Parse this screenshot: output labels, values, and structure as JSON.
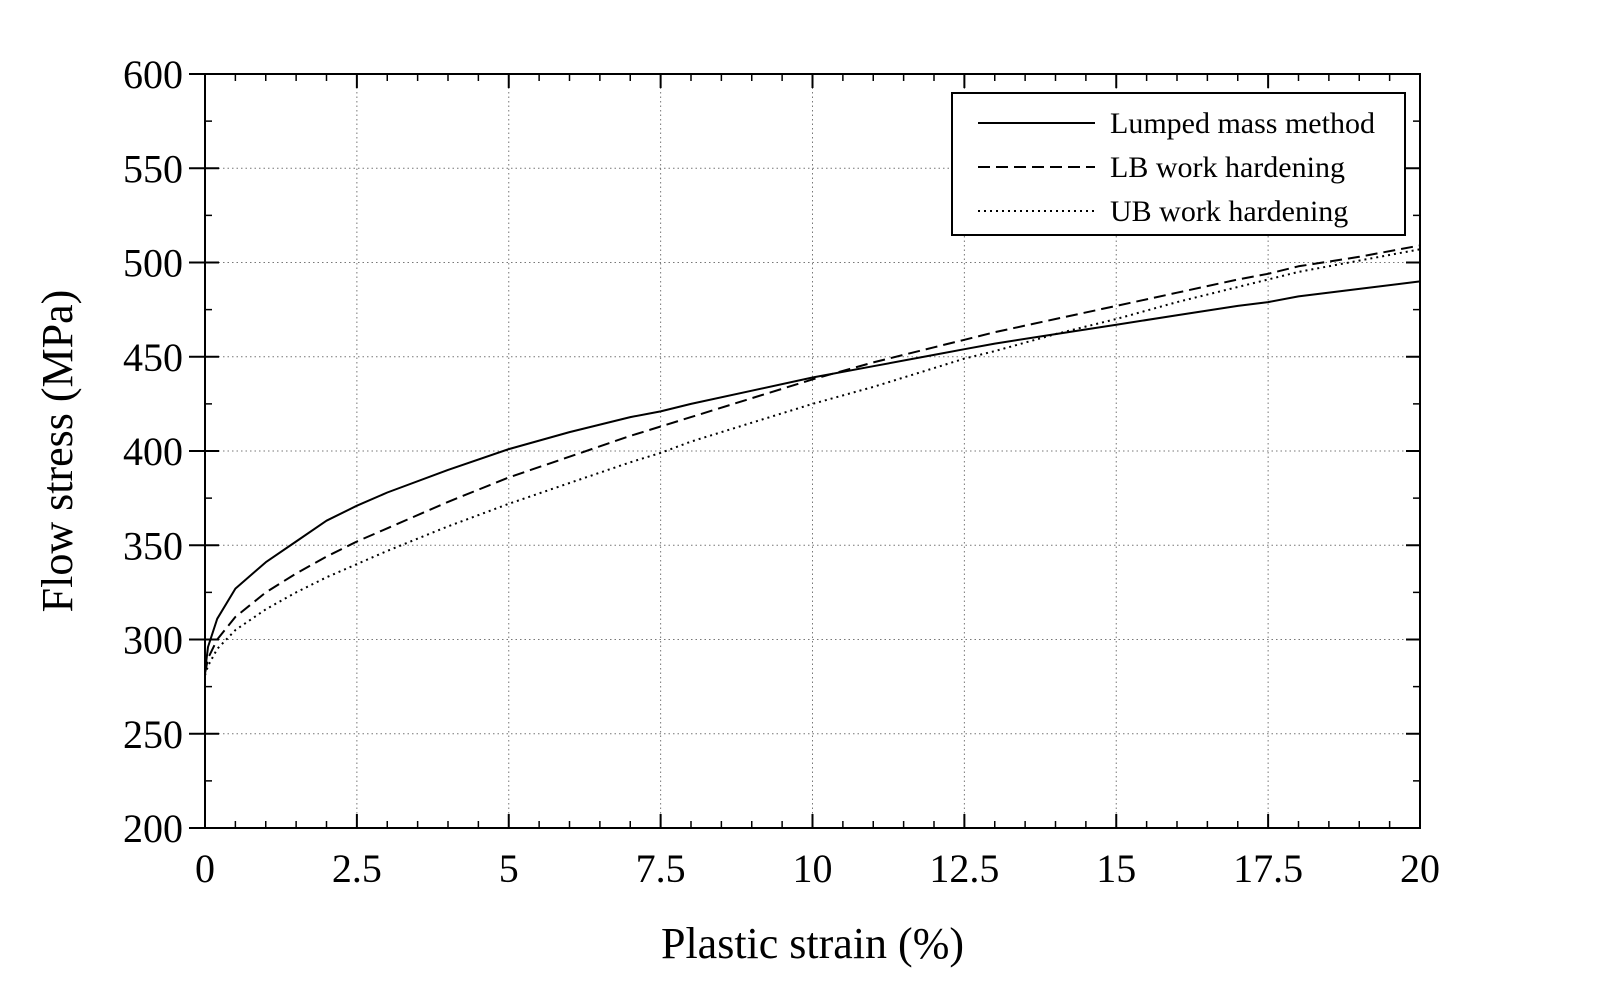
{
  "chart_data": {
    "type": "line",
    "title": "",
    "xlabel": "Plastic strain (%)",
    "ylabel": "Flow stress (MPa)",
    "xlim": [
      0,
      20
    ],
    "ylim": [
      200,
      600
    ],
    "x_ticks": [
      0,
      2.5,
      5,
      7.5,
      10,
      12.5,
      15,
      17.5,
      20
    ],
    "x_tick_labels": [
      "0",
      "2.5",
      "5",
      "7.5",
      "10",
      "12.5",
      "15",
      "17.5",
      "20"
    ],
    "y_ticks": [
      200,
      250,
      300,
      350,
      400,
      450,
      500,
      550,
      600
    ],
    "y_tick_labels": [
      "200",
      "250",
      "300",
      "350",
      "400",
      "450",
      "500",
      "550",
      "600"
    ],
    "grid": true,
    "legend_position": "top-right",
    "series": [
      {
        "name": "Lumped mass method",
        "line_style": "solid",
        "color": "#000000",
        "x": [
          0,
          0.05,
          0.2,
          0.5,
          1,
          1.5,
          2,
          2.5,
          3,
          4,
          5,
          6,
          7,
          7.5,
          8,
          9,
          10,
          11,
          12,
          12.5,
          13,
          14,
          15,
          16,
          17,
          17.5,
          18,
          19,
          20
        ],
        "y": [
          283,
          296,
          311,
          327,
          341,
          352,
          363,
          371,
          378,
          390,
          401,
          410,
          418,
          421,
          425,
          432,
          439,
          445,
          451,
          454,
          457,
          462,
          467,
          472,
          477,
          479,
          482,
          486,
          490
        ]
      },
      {
        "name": "LB work hardening",
        "line_style": "dashed",
        "color": "#000000",
        "x": [
          0,
          0.05,
          0.2,
          0.5,
          1,
          1.5,
          2,
          2.5,
          3,
          4,
          5,
          6,
          7,
          7.5,
          8,
          9,
          10,
          11,
          12,
          12.5,
          13,
          14,
          15,
          16,
          17,
          17.5,
          18,
          19,
          20
        ],
        "y": [
          282,
          290,
          300,
          312,
          325,
          335,
          344,
          352,
          359,
          373,
          386,
          397,
          408,
          413,
          418,
          428,
          438,
          447,
          455,
          459,
          463,
          470,
          477,
          484,
          491,
          494,
          498,
          503,
          509
        ]
      },
      {
        "name": "UB work hardening",
        "line_style": "dotted",
        "color": "#000000",
        "x": [
          0,
          0.05,
          0.2,
          0.5,
          1,
          1.5,
          2,
          2.5,
          3,
          4,
          5,
          6,
          7,
          7.5,
          8,
          9,
          10,
          11,
          12,
          12.5,
          13,
          14,
          15,
          16,
          17,
          17.5,
          18,
          19,
          20
        ],
        "y": [
          281,
          286,
          295,
          305,
          316,
          325,
          333,
          340,
          347,
          360,
          372,
          383,
          394,
          399,
          405,
          415,
          425,
          434,
          444,
          449,
          453,
          462,
          470,
          479,
          487,
          491,
          495,
          501,
          507
        ]
      }
    ]
  }
}
